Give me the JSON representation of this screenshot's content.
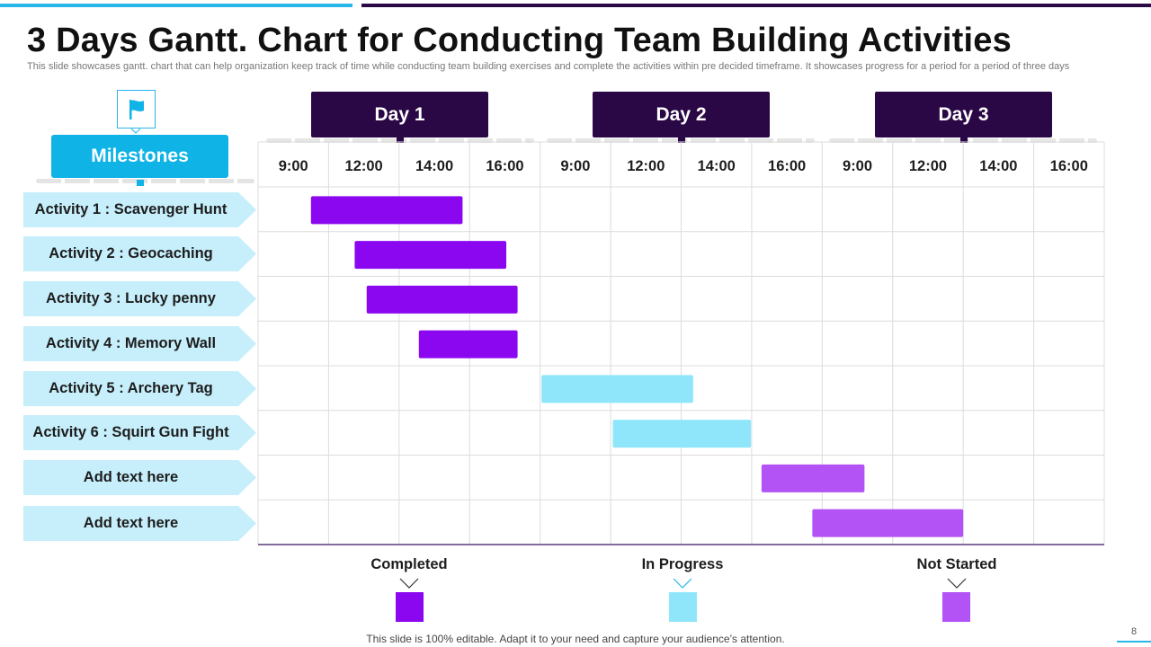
{
  "title": "3 Days Gantt. Chart for Conducting Team Building Activities",
  "subtitle": "This slide showcases gantt. chart that can help organization keep track of time while conducting team building exercises and complete the activities within pre decided timeframe. It showcases progress for a period for a period of three days",
  "milestones_label": "Milestones",
  "icons": {
    "flag": "flag-icon"
  },
  "activities": [
    "Activity 1 : Scavenger Hunt",
    "Activity 2 : Geocaching",
    "Activity 3 : Lucky penny",
    "Activity 4 : Memory Wall",
    "Activity 5 : Archery Tag",
    "Activity 6 : Squirt Gun Fight",
    "Add text here",
    "Add text here"
  ],
  "days": [
    "Day 1",
    "Day 2",
    "Day 3"
  ],
  "legend": {
    "completed": "Completed",
    "in_progress": "In Progress",
    "not_started": "Not Started"
  },
  "colors": {
    "completed": "#8a07f0",
    "in_progress": "#8fe6fb",
    "not_started": "#b352f5",
    "accent": "#0fb3e6",
    "day_header": "#2a0845"
  },
  "footer": "This slide is 100% editable. Adapt it to your need and capture your audience’s attention.",
  "page_number": "8",
  "chart_data": {
    "type": "gantt",
    "title": "3 Days Gantt. Chart for Conducting Team Building Activities",
    "time_columns": [
      "9:00",
      "12:00",
      "14:00",
      "16:00",
      "9:00",
      "12:00",
      "14:00",
      "16:00",
      "9:00",
      "12:00",
      "14:00",
      "16:00"
    ],
    "column_groups": [
      "Day 1",
      "Day 2",
      "Day 3"
    ],
    "tasks": [
      {
        "name": "Activity 1 : Scavenger Hunt",
        "start": 0.75,
        "end": 2.9,
        "status": "completed"
      },
      {
        "name": "Activity 2 : Geocaching",
        "start": 1.37,
        "end": 3.52,
        "status": "completed"
      },
      {
        "name": "Activity 3 : Lucky penny",
        "start": 1.54,
        "end": 3.68,
        "status": "completed"
      },
      {
        "name": "Activity 4 : Memory Wall",
        "start": 2.28,
        "end": 3.68,
        "status": "completed"
      },
      {
        "name": "Activity 5 : Archery Tag",
        "start": 4.02,
        "end": 6.17,
        "status": "in_progress"
      },
      {
        "name": "Activity 6 : Squirt Gun Fight",
        "start": 5.03,
        "end": 6.99,
        "status": "in_progress"
      },
      {
        "name": "Add text here",
        "start": 7.14,
        "end": 8.6,
        "status": "not_started"
      },
      {
        "name": "Add text here",
        "start": 7.86,
        "end": 10.0,
        "status": "not_started"
      }
    ]
  }
}
